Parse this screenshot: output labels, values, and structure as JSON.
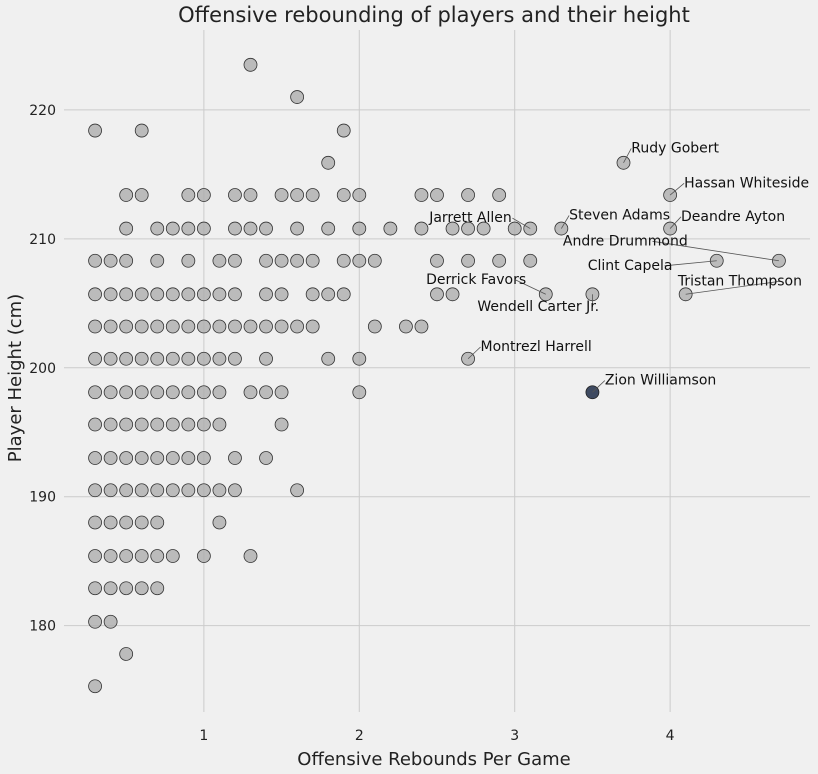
{
  "chart_data": {
    "type": "scatter",
    "title": "Offensive rebounding of players and their height",
    "xlabel": "Offensive Rebounds Per Game",
    "ylabel": "Player Height (cm)",
    "xlim": [
      0.1,
      4.9
    ],
    "ylim": [
      173.3,
      226.2
    ],
    "xticks": [
      1,
      2,
      3,
      4
    ],
    "yticks": [
      180,
      190,
      200,
      210,
      220
    ],
    "grid": true,
    "colors": {
      "point": "#aaaaaa",
      "point_edge": "#333333",
      "highlight": "#3e4a61",
      "grid": "#cbcbcb",
      "background": "#f0f0f0"
    },
    "points": [
      [
        0.3,
        175.3
      ],
      [
        0.5,
        177.8
      ],
      [
        0.3,
        180.3
      ],
      [
        0.4,
        180.3
      ],
      [
        0.3,
        182.9
      ],
      [
        0.4,
        182.9
      ],
      [
        0.5,
        182.9
      ],
      [
        0.6,
        182.9
      ],
      [
        0.7,
        182.9
      ],
      [
        0.3,
        185.4
      ],
      [
        0.4,
        185.4
      ],
      [
        0.5,
        185.4
      ],
      [
        0.6,
        185.4
      ],
      [
        0.7,
        185.4
      ],
      [
        0.8,
        185.4
      ],
      [
        1.0,
        185.4
      ],
      [
        1.3,
        185.4
      ],
      [
        0.3,
        188.0
      ],
      [
        0.4,
        188.0
      ],
      [
        0.5,
        188.0
      ],
      [
        0.6,
        188.0
      ],
      [
        0.7,
        188.0
      ],
      [
        1.1,
        188.0
      ],
      [
        0.3,
        190.5
      ],
      [
        0.4,
        190.5
      ],
      [
        0.5,
        190.5
      ],
      [
        0.6,
        190.5
      ],
      [
        0.7,
        190.5
      ],
      [
        0.8,
        190.5
      ],
      [
        0.9,
        190.5
      ],
      [
        1.0,
        190.5
      ],
      [
        1.1,
        190.5
      ],
      [
        1.2,
        190.5
      ],
      [
        1.6,
        190.5
      ],
      [
        0.3,
        193.0
      ],
      [
        0.4,
        193.0
      ],
      [
        0.5,
        193.0
      ],
      [
        0.6,
        193.0
      ],
      [
        0.7,
        193.0
      ],
      [
        0.8,
        193.0
      ],
      [
        0.9,
        193.0
      ],
      [
        1.0,
        193.0
      ],
      [
        1.2,
        193.0
      ],
      [
        1.4,
        193.0
      ],
      [
        0.3,
        195.6
      ],
      [
        0.4,
        195.6
      ],
      [
        0.5,
        195.6
      ],
      [
        0.6,
        195.6
      ],
      [
        0.7,
        195.6
      ],
      [
        0.8,
        195.6
      ],
      [
        0.9,
        195.6
      ],
      [
        1.0,
        195.6
      ],
      [
        1.1,
        195.6
      ],
      [
        1.5,
        195.6
      ],
      [
        0.3,
        198.1
      ],
      [
        0.4,
        198.1
      ],
      [
        0.5,
        198.1
      ],
      [
        0.6,
        198.1
      ],
      [
        0.7,
        198.1
      ],
      [
        0.8,
        198.1
      ],
      [
        0.9,
        198.1
      ],
      [
        1.0,
        198.1
      ],
      [
        1.1,
        198.1
      ],
      [
        1.3,
        198.1
      ],
      [
        1.4,
        198.1
      ],
      [
        1.5,
        198.1
      ],
      [
        2.0,
        198.1
      ],
      [
        0.3,
        200.7
      ],
      [
        0.4,
        200.7
      ],
      [
        0.5,
        200.7
      ],
      [
        0.6,
        200.7
      ],
      [
        0.7,
        200.7
      ],
      [
        0.8,
        200.7
      ],
      [
        0.9,
        200.7
      ],
      [
        1.0,
        200.7
      ],
      [
        1.1,
        200.7
      ],
      [
        1.2,
        200.7
      ],
      [
        1.4,
        200.7
      ],
      [
        1.8,
        200.7
      ],
      [
        2.0,
        200.7
      ],
      [
        2.7,
        200.7
      ],
      [
        0.3,
        203.2
      ],
      [
        0.4,
        203.2
      ],
      [
        0.5,
        203.2
      ],
      [
        0.6,
        203.2
      ],
      [
        0.7,
        203.2
      ],
      [
        0.8,
        203.2
      ],
      [
        0.9,
        203.2
      ],
      [
        1.0,
        203.2
      ],
      [
        1.1,
        203.2
      ],
      [
        1.2,
        203.2
      ],
      [
        1.3,
        203.2
      ],
      [
        1.4,
        203.2
      ],
      [
        1.5,
        203.2
      ],
      [
        1.6,
        203.2
      ],
      [
        1.7,
        203.2
      ],
      [
        2.1,
        203.2
      ],
      [
        2.3,
        203.2
      ],
      [
        2.4,
        203.2
      ],
      [
        0.3,
        205.7
      ],
      [
        0.4,
        205.7
      ],
      [
        0.5,
        205.7
      ],
      [
        0.6,
        205.7
      ],
      [
        0.7,
        205.7
      ],
      [
        0.8,
        205.7
      ],
      [
        0.9,
        205.7
      ],
      [
        1.0,
        205.7
      ],
      [
        1.1,
        205.7
      ],
      [
        1.2,
        205.7
      ],
      [
        1.4,
        205.7
      ],
      [
        1.5,
        205.7
      ],
      [
        1.7,
        205.7
      ],
      [
        1.8,
        205.7
      ],
      [
        1.9,
        205.7
      ],
      [
        2.5,
        205.7
      ],
      [
        2.6,
        205.7
      ],
      [
        3.2,
        205.7
      ],
      [
        3.5,
        205.7
      ],
      [
        4.1,
        205.7
      ],
      [
        0.3,
        208.3
      ],
      [
        0.4,
        208.3
      ],
      [
        0.5,
        208.3
      ],
      [
        0.7,
        208.3
      ],
      [
        0.9,
        208.3
      ],
      [
        1.1,
        208.3
      ],
      [
        1.2,
        208.3
      ],
      [
        1.4,
        208.3
      ],
      [
        1.5,
        208.3
      ],
      [
        1.6,
        208.3
      ],
      [
        1.7,
        208.3
      ],
      [
        1.9,
        208.3
      ],
      [
        2.0,
        208.3
      ],
      [
        2.1,
        208.3
      ],
      [
        2.5,
        208.3
      ],
      [
        2.7,
        208.3
      ],
      [
        2.9,
        208.3
      ],
      [
        3.1,
        208.3
      ],
      [
        4.3,
        208.3
      ],
      [
        4.7,
        208.3
      ],
      [
        0.5,
        210.8
      ],
      [
        0.7,
        210.8
      ],
      [
        0.8,
        210.8
      ],
      [
        0.9,
        210.8
      ],
      [
        1.0,
        210.8
      ],
      [
        1.2,
        210.8
      ],
      [
        1.3,
        210.8
      ],
      [
        1.4,
        210.8
      ],
      [
        1.6,
        210.8
      ],
      [
        1.8,
        210.8
      ],
      [
        2.0,
        210.8
      ],
      [
        2.2,
        210.8
      ],
      [
        2.4,
        210.8
      ],
      [
        2.6,
        210.8
      ],
      [
        2.7,
        210.8
      ],
      [
        2.8,
        210.8
      ],
      [
        3.0,
        210.8
      ],
      [
        3.1,
        210.8
      ],
      [
        3.3,
        210.8
      ],
      [
        4.0,
        210.8
      ],
      [
        0.5,
        213.4
      ],
      [
        0.6,
        213.4
      ],
      [
        0.9,
        213.4
      ],
      [
        1.0,
        213.4
      ],
      [
        1.2,
        213.4
      ],
      [
        1.3,
        213.4
      ],
      [
        1.5,
        213.4
      ],
      [
        1.6,
        213.4
      ],
      [
        1.7,
        213.4
      ],
      [
        1.9,
        213.4
      ],
      [
        2.0,
        213.4
      ],
      [
        2.4,
        213.4
      ],
      [
        2.5,
        213.4
      ],
      [
        2.7,
        213.4
      ],
      [
        2.9,
        213.4
      ],
      [
        4.0,
        213.4
      ],
      [
        1.8,
        215.9
      ],
      [
        3.7,
        215.9
      ],
      [
        0.3,
        218.4
      ],
      [
        0.6,
        218.4
      ],
      [
        1.9,
        218.4
      ],
      [
        1.6,
        221.0
      ],
      [
        1.3,
        223.5
      ]
    ],
    "highlight": [
      3.5,
      198.1
    ],
    "annotations": [
      {
        "label": "Rudy Gobert",
        "x": 3.7,
        "y": 215.9,
        "tx": 3.75,
        "ty": 216.7,
        "anchor": "start"
      },
      {
        "label": "Hassan Whiteside",
        "x": 4.0,
        "y": 213.4,
        "tx": 4.09,
        "ty": 214.0,
        "anchor": "start"
      },
      {
        "label": "Steven Adams",
        "x": 3.3,
        "y": 210.8,
        "tx": 3.35,
        "ty": 211.5,
        "anchor": "start"
      },
      {
        "label": "Jarrett Allen",
        "x": 3.1,
        "y": 210.8,
        "tx": 2.45,
        "ty": 211.3,
        "anchor": "start"
      },
      {
        "label": "Deandre Ayton",
        "x": 4.0,
        "y": 210.8,
        "tx": 4.07,
        "ty": 211.4,
        "anchor": "start"
      },
      {
        "label": "Andre Drummond",
        "x": 4.7,
        "y": 208.3,
        "tx": 3.31,
        "ty": 209.5,
        "anchor": "start"
      },
      {
        "label": "Clint Capela",
        "x": 4.3,
        "y": 208.3,
        "tx": 3.47,
        "ty": 207.6,
        "anchor": "start"
      },
      {
        "label": "Tristan Thompson",
        "x": 4.1,
        "y": 205.7,
        "tx": 4.05,
        "ty": 206.4,
        "anchor": "start"
      },
      {
        "label": "Derrick Favors",
        "x": 3.2,
        "y": 205.7,
        "tx": 2.43,
        "ty": 206.5,
        "anchor": "start"
      },
      {
        "label": "Wendell Carter Jr.",
        "x": 3.5,
        "y": 205.7,
        "tx": 2.76,
        "ty": 204.4,
        "anchor": "start"
      },
      {
        "label": "Montrezl Harrell",
        "x": 2.7,
        "y": 200.7,
        "tx": 2.78,
        "ty": 201.3,
        "anchor": "start"
      },
      {
        "label": "Zion Williamson",
        "x": 3.5,
        "y": 198.1,
        "tx": 3.58,
        "ty": 198.7,
        "anchor": "start"
      }
    ]
  }
}
